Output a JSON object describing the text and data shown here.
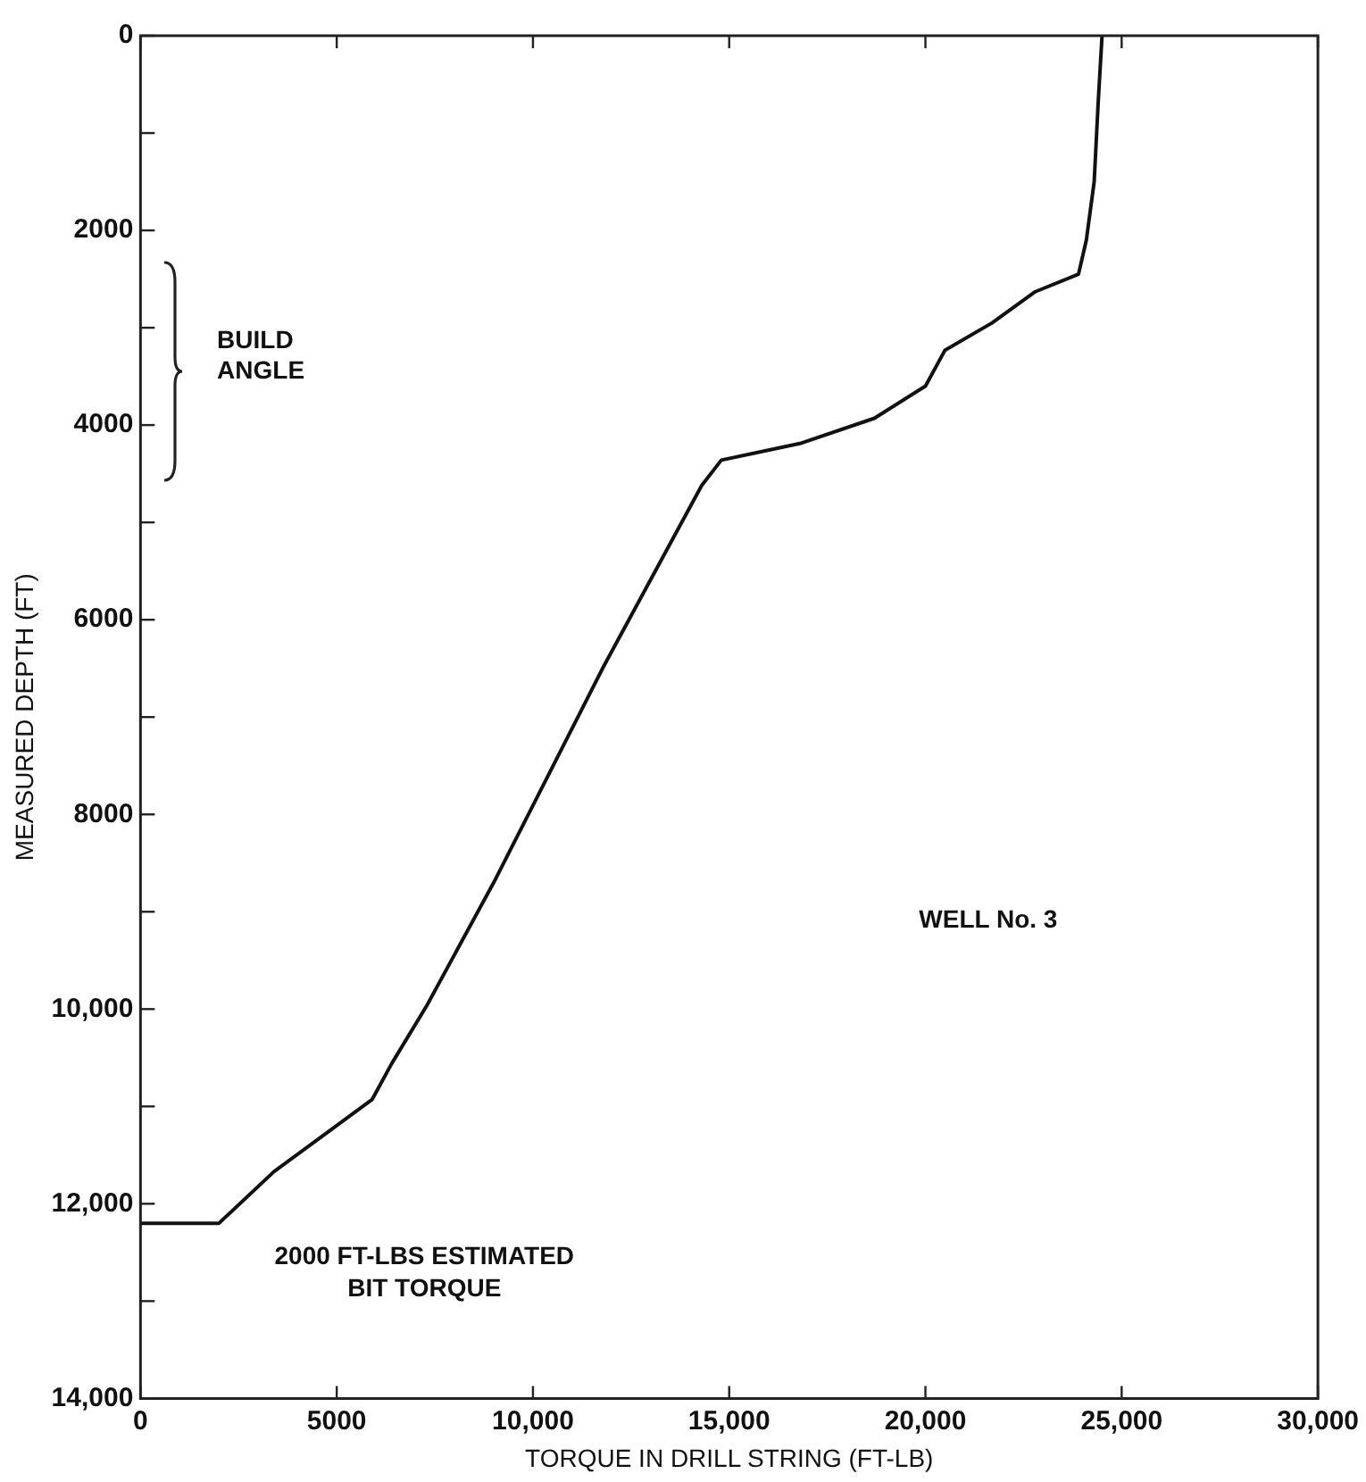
{
  "chart_data": {
    "type": "line",
    "xlabel": "TORQUE IN DRILL STRING (FT-LB)",
    "ylabel": "MEASURED DEPTH (FT)",
    "series": [
      {
        "color": "#111111",
        "x": [
          0,
          2000,
          3400,
          5900,
          6400,
          7300,
          9000,
          11800,
          14300,
          14800,
          16800,
          18700,
          20000,
          20500,
          21700,
          22800,
          23900,
          24100,
          24300,
          24400,
          24500
        ],
        "values": [
          12200,
          12200,
          11670,
          10930,
          10560,
          9960,
          8700,
          6480,
          4620,
          4360,
          4190,
          3930,
          3600,
          3230,
          2950,
          2630,
          2450,
          2100,
          1500,
          700,
          0
        ]
      }
    ],
    "xlim": [
      0,
      30000
    ],
    "xticks": [
      0,
      5000,
      {
        "value": 10000,
        "label": "10,000"
      },
      {
        "value": 15000,
        "label": "15,000"
      },
      {
        "value": 20000,
        "label": "20,000"
      },
      {
        "value": 25000,
        "label": "25,000"
      },
      {
        "value": 30000,
        "label": "30,000"
      }
    ],
    "ylim": [
      14000,
      0
    ],
    "yticks": [
      0,
      {
        "value": 1000,
        "label": null
      },
      2000,
      {
        "value": 3000,
        "label": null
      },
      4000,
      {
        "value": 5000,
        "label": null
      },
      6000,
      {
        "value": 7000,
        "label": null
      },
      8000,
      {
        "value": 9000,
        "label": null
      },
      {
        "value": 10000,
        "label": "10,000"
      },
      {
        "value": 11000,
        "label": null
      },
      {
        "value": 12000,
        "label": "12,000"
      },
      {
        "value": 13000,
        "label": null
      },
      {
        "value": 14000,
        "label": "14,000"
      }
    ],
    "annotations": [
      "BUILD ANGLE",
      {
        "text": "2000 FT-LBS ESTIMATED BIT TORQUE",
        "x": 2000,
        "y": 12200
      },
      "WELL No. 3"
    ],
    "grid": false,
    "legend": false,
    "marker": "none",
    "line_style": "solid"
  }
}
